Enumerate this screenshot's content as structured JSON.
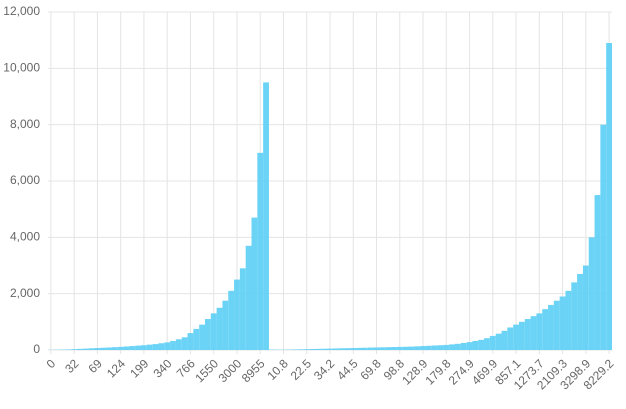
{
  "chart_data": {
    "type": "bar",
    "categories": [
      "0",
      null,
      null,
      null,
      "32",
      null,
      null,
      null,
      "69",
      null,
      null,
      null,
      "124",
      null,
      null,
      null,
      "199",
      null,
      null,
      null,
      "340",
      null,
      null,
      null,
      "766",
      null,
      null,
      null,
      "1550",
      null,
      null,
      null,
      "3000",
      null,
      null,
      null,
      "8955",
      null,
      null,
      null,
      "10.8",
      null,
      null,
      null,
      "22.5",
      null,
      null,
      null,
      "34.2",
      null,
      null,
      null,
      "44.5",
      null,
      null,
      null,
      "69.8",
      null,
      null,
      null,
      "98.8",
      null,
      null,
      null,
      "128.9",
      null,
      null,
      null,
      "179.8",
      null,
      null,
      null,
      "274.9",
      null,
      null,
      null,
      "469.9",
      null,
      null,
      null,
      "857.1",
      null,
      null,
      null,
      "1273.7",
      null,
      null,
      null,
      "2109.3",
      null,
      null,
      null,
      "3298.9",
      null,
      null,
      null,
      "8229.2"
    ],
    "values": [
      5,
      10,
      15,
      20,
      30,
      40,
      50,
      60,
      70,
      80,
      90,
      100,
      110,
      125,
      140,
      155,
      170,
      190,
      210,
      240,
      270,
      320,
      380,
      450,
      600,
      750,
      900,
      1100,
      1300,
      1500,
      1750,
      2100,
      2500,
      2900,
      3700,
      4700,
      7000,
      9500,
      15,
      10,
      10,
      15,
      20,
      25,
      30,
      35,
      40,
      45,
      50,
      55,
      60,
      65,
      70,
      75,
      80,
      85,
      90,
      95,
      100,
      105,
      110,
      115,
      120,
      130,
      140,
      150,
      160,
      170,
      180,
      200,
      220,
      250,
      280,
      320,
      360,
      420,
      500,
      580,
      680,
      800,
      900,
      1000,
      1100,
      1200,
      1300,
      1450,
      1600,
      1750,
      1900,
      2100,
      2400,
      2700,
      3000,
      4000,
      5500,
      8000,
      10900
    ],
    "color": "#5bcef5",
    "ylim": [
      0,
      12000
    ],
    "yticks": [
      0,
      {
        "value": 2000,
        "label": "2,000"
      },
      {
        "value": 4000,
        "label": "4,000"
      },
      {
        "value": 6000,
        "label": "6,000"
      },
      {
        "value": 8000,
        "label": "8,000"
      },
      {
        "value": 10000,
        "label": "10,000"
      },
      {
        "value": 12000,
        "label": "12,000"
      }
    ],
    "grid": true
  }
}
